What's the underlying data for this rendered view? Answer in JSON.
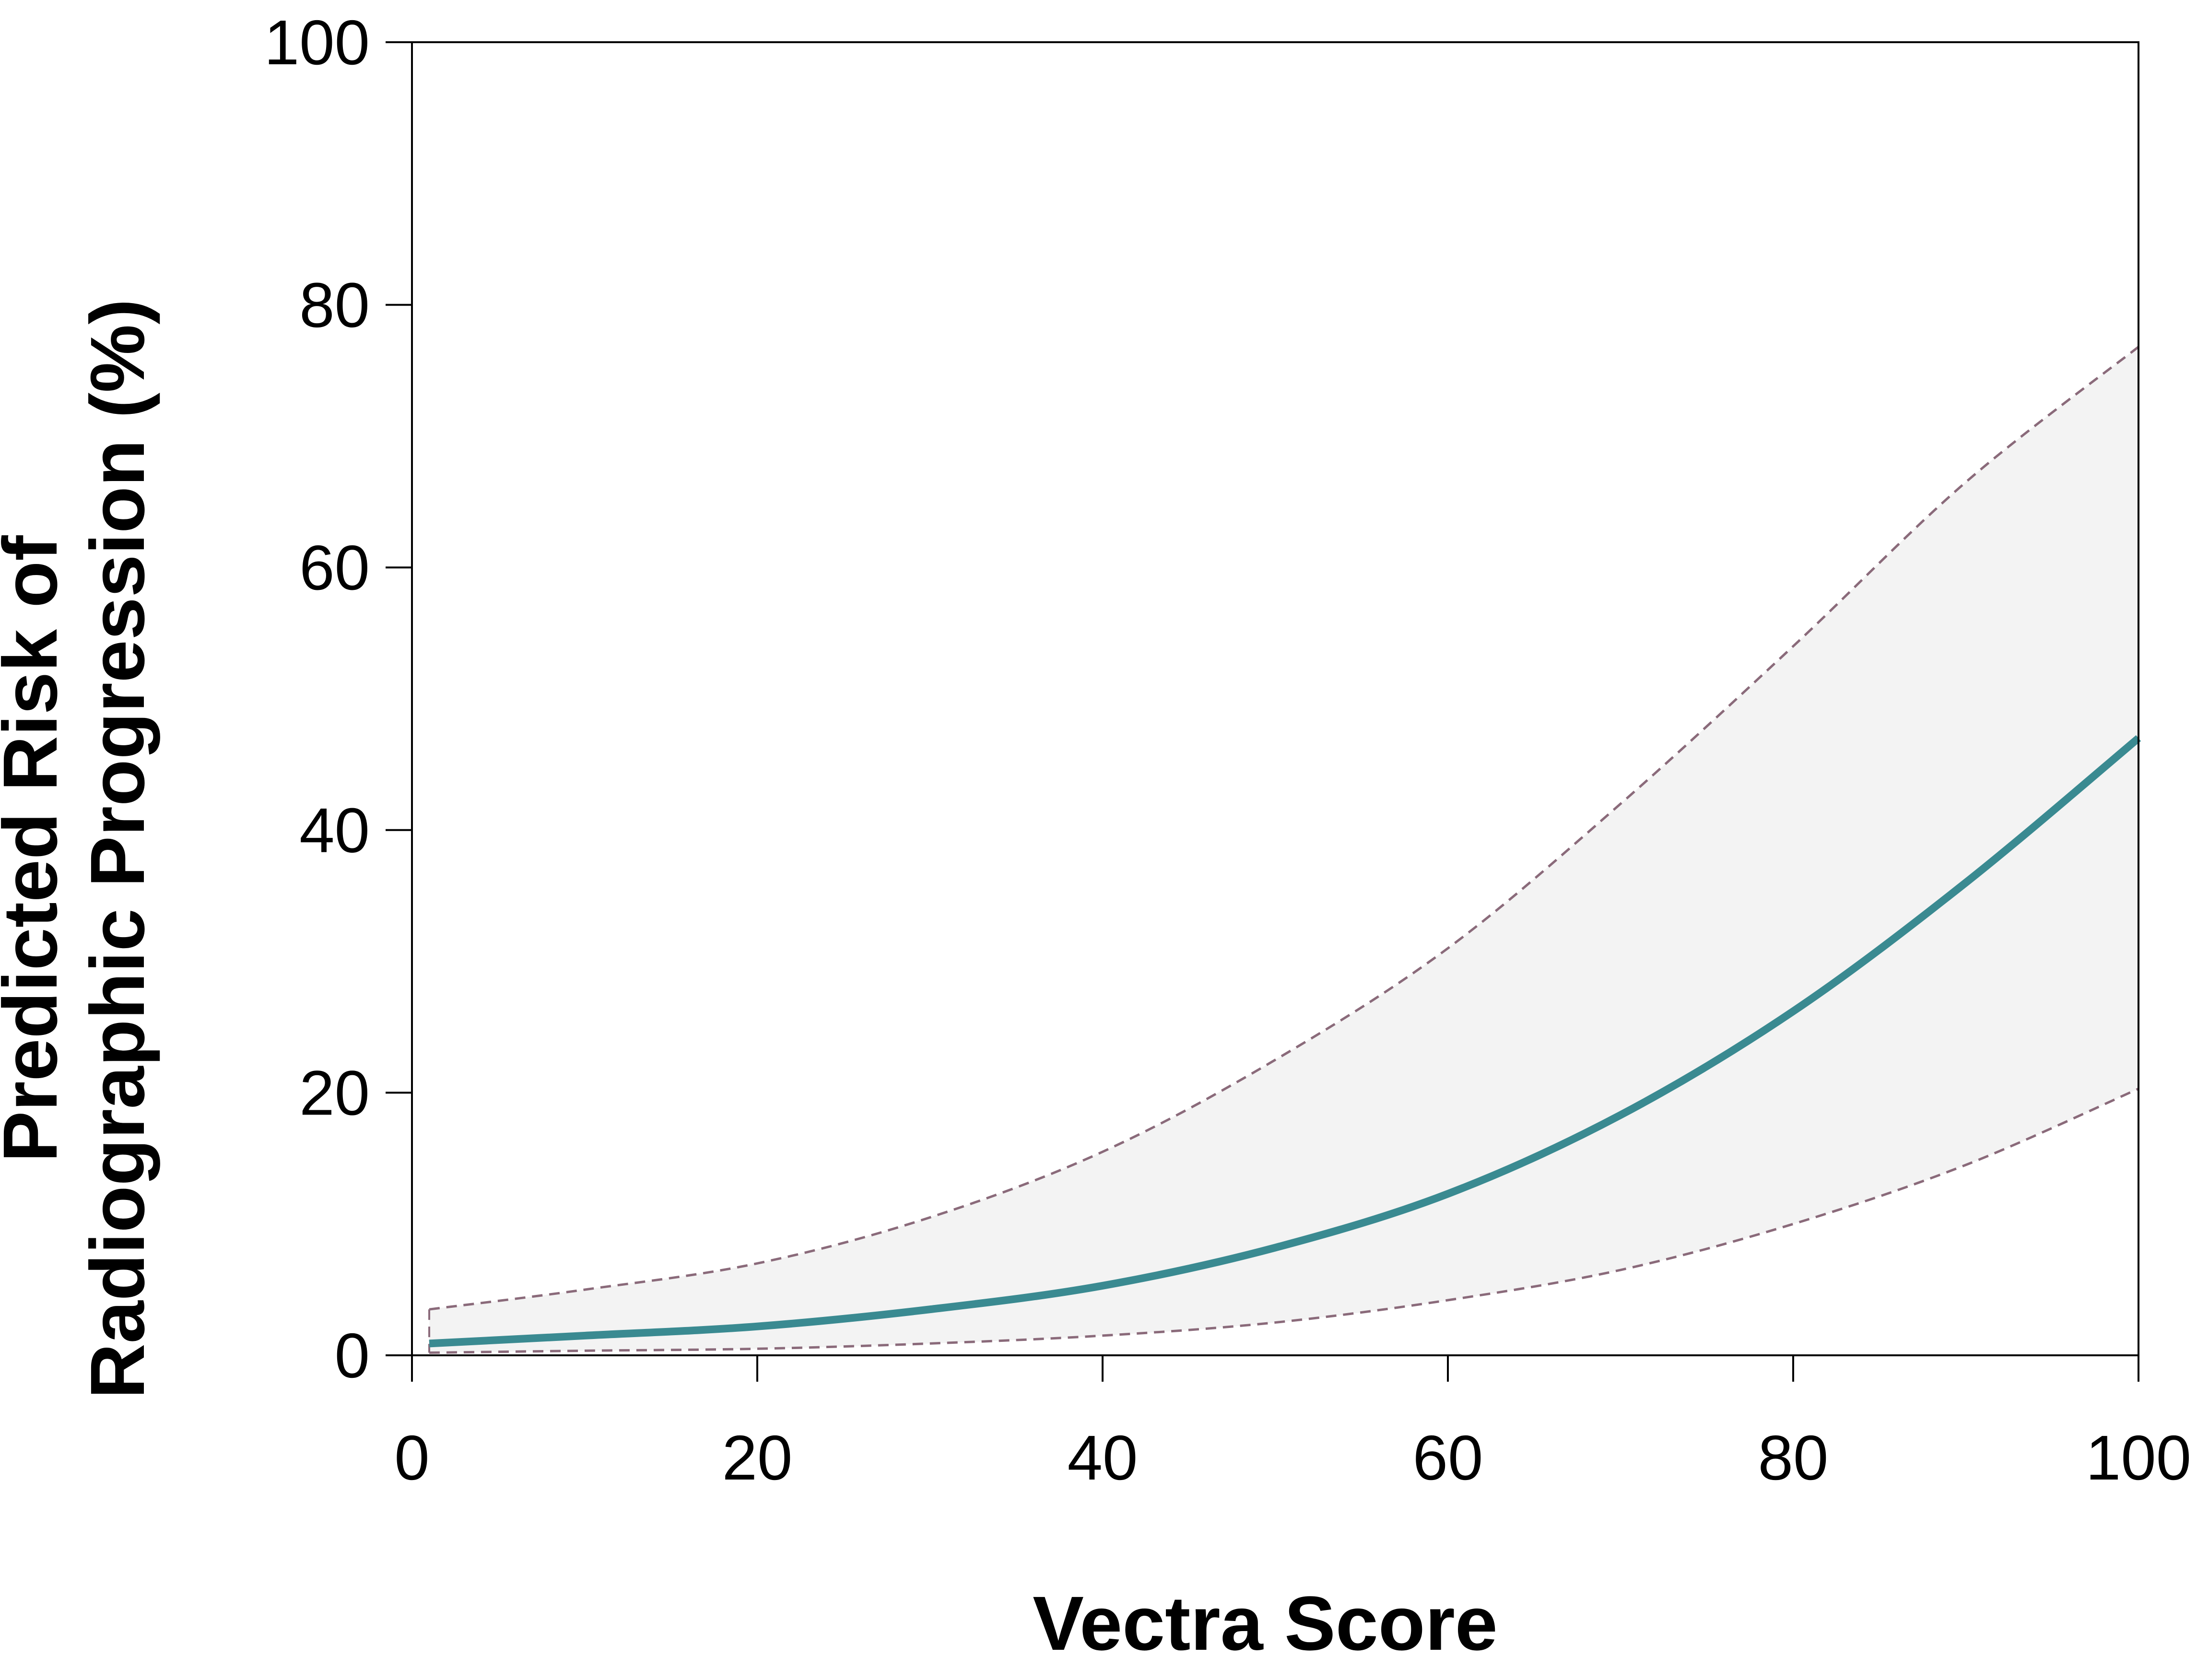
{
  "chart_data": {
    "type": "line",
    "xlabel": "Vectra Score",
    "ylabel": [
      "Predicted Risk of",
      "Radiographic Progression (%)"
    ],
    "xlim": [
      0,
      100
    ],
    "ylim": [
      0,
      100
    ],
    "xticks": [
      "0",
      "20",
      "40",
      "60",
      "80",
      "100"
    ],
    "yticks": [
      "0",
      "20",
      "40",
      "60",
      "80",
      "100"
    ],
    "grid": false,
    "x": [
      1,
      10,
      20,
      30,
      40,
      50,
      60,
      70,
      80,
      90,
      100
    ],
    "series": [
      {
        "role": "estimate",
        "style": "solid",
        "color": "#3a8a91",
        "values": [
          0.9,
          1.5,
          2.2,
          3.5,
          5.3,
          8.2,
          12.3,
          18.3,
          26.2,
          36.0,
          47.0
        ]
      },
      {
        "role": "upper-bound",
        "style": "dashed",
        "color": "#8a6a7a",
        "values": [
          3.5,
          5.0,
          7.0,
          10.5,
          15.5,
          22.5,
          31.0,
          42.0,
          54.0,
          66.5,
          76.8
        ]
      },
      {
        "role": "lower-bound",
        "style": "dashed",
        "color": "#8a6a7a",
        "values": [
          0.2,
          0.35,
          0.5,
          0.9,
          1.5,
          2.5,
          4.2,
          6.5,
          10.0,
          14.5,
          20.3
        ]
      }
    ],
    "band_color": "#f3f3f3"
  }
}
